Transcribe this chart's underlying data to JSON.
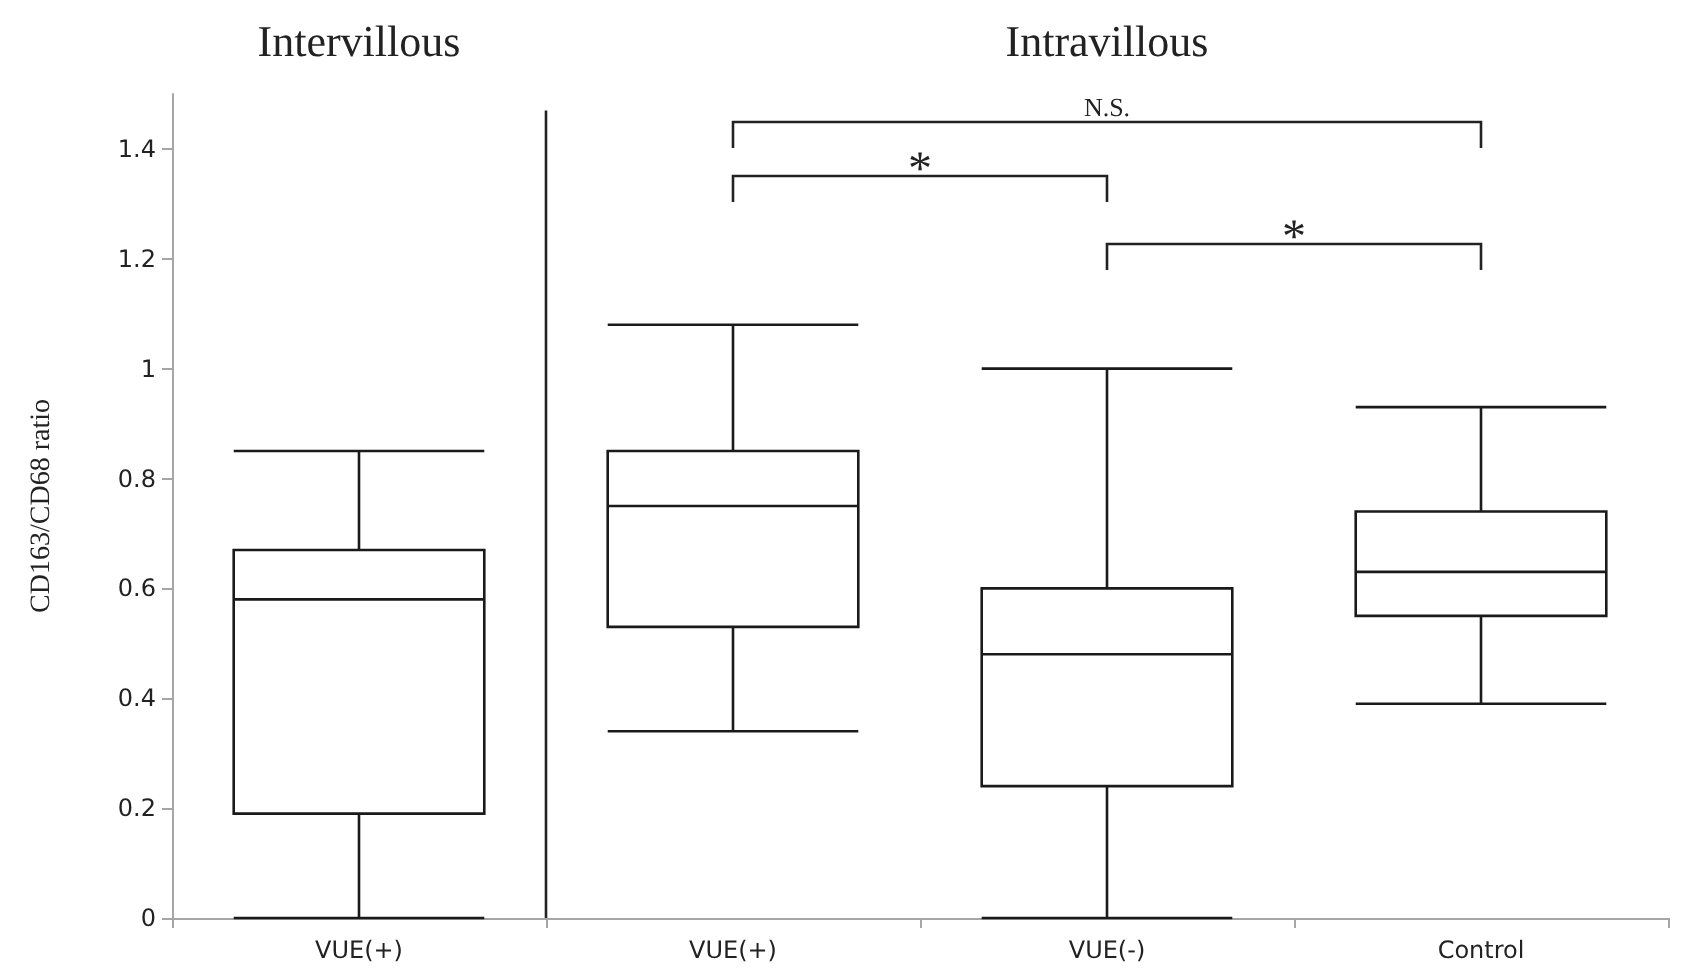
{
  "chart_data": {
    "type": "box",
    "ylabel": "CD163/CD68 ratio",
    "categories": [
      "VUE(+)",
      "VUE(+)",
      "VUE(-)",
      "Control"
    ],
    "boxes": [
      {
        "low": 0,
        "q1": 0.19,
        "median": 0.58,
        "q3": 0.67,
        "high": 0.85
      },
      {
        "low": 0.34,
        "q1": 0.53,
        "median": 0.75,
        "q3": 0.85,
        "high": 1.08
      },
      {
        "low": 0,
        "q1": 0.24,
        "median": 0.48,
        "q3": 0.6,
        "high": 1.0
      },
      {
        "low": 0.39,
        "q1": 0.55,
        "median": 0.63,
        "q3": 0.74,
        "high": 0.93
      }
    ],
    "ylim": [
      0,
      1.5
    ],
    "yticks": [
      0,
      {
        "value": 0.2,
        "label": "0.2"
      },
      {
        "value": 0.4,
        "label": "0.4"
      },
      {
        "value": 0.6,
        "label": "0.6"
      },
      {
        "value": 0.8,
        "label": "0.8"
      },
      1,
      {
        "value": 1.2,
        "label": "1.2"
      },
      {
        "value": 1.4,
        "label": "1.4"
      }
    ],
    "annotations": [
      "Intervillous",
      "Intravillous",
      "N.S.",
      "*",
      "*"
    ],
    "grid": false
  }
}
